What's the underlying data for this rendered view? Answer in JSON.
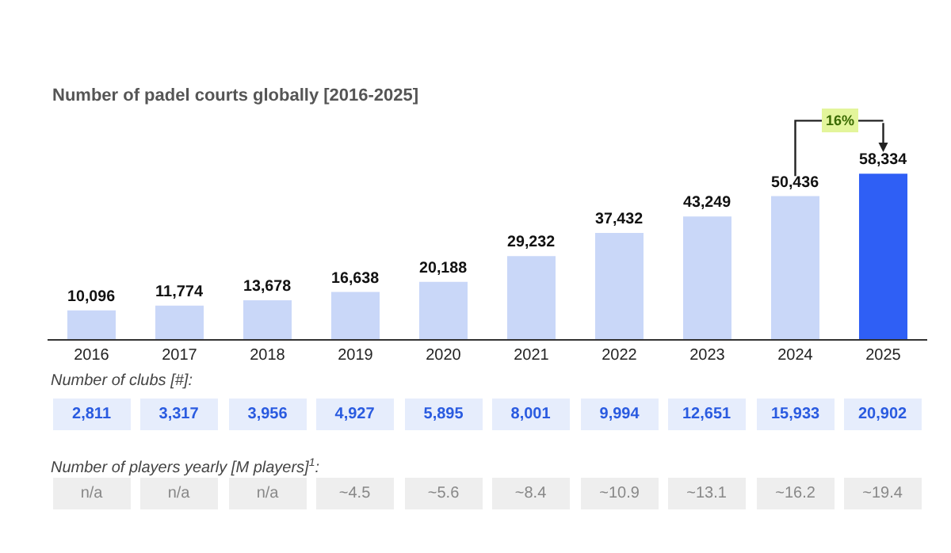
{
  "chart_data": {
    "type": "bar",
    "title": "Number of padel courts globally [2016-2025]",
    "categories": [
      "2016",
      "2017",
      "2018",
      "2019",
      "2020",
      "2021",
      "2022",
      "2023",
      "2024",
      "2025"
    ],
    "values": [
      10096,
      11774,
      13678,
      16638,
      20188,
      29232,
      37432,
      43249,
      50436,
      58334
    ],
    "value_labels": [
      "10,096",
      "11,774",
      "13,678",
      "16,638",
      "20,188",
      "29,232",
      "37,432",
      "43,249",
      "50,436",
      "58,334"
    ],
    "colors": [
      "#c9d7f8",
      "#c9d7f8",
      "#c9d7f8",
      "#c9d7f8",
      "#c9d7f8",
      "#c9d7f8",
      "#c9d7f8",
      "#c9d7f8",
      "#c9d7f8",
      "#2f5ff5"
    ],
    "legend": false,
    "annotations": [
      "16%",
      "Number of clubs [#]:",
      "2,811",
      "3,317",
      "3,956",
      "4,927",
      "5,895",
      "8,001",
      "9,994",
      "12,651",
      "15,933",
      "20,902",
      "Number of players yearly [M players]$^{1}$:",
      "n/a",
      "n/a",
      "n/a",
      "~4.5",
      "~5.6",
      "~8.4",
      "~10.9",
      "~13.1",
      "~16.2",
      "~19.4"
    ]
  }
}
